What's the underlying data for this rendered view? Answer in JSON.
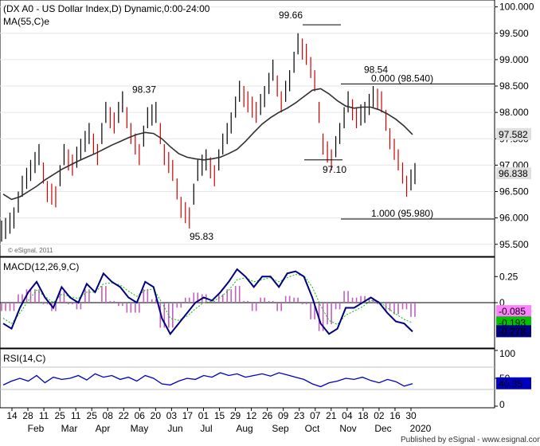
{
  "chart_data": [
    {
      "type": "candlestick",
      "title": "(DX A0 - US Dollar Index,D) Dynamic,0:00-24:00",
      "indicator_label": "MA(55,C)e",
      "watermark": "© eSignal, 2011",
      "ylim": [
        95.3,
        100.1
      ],
      "y_ticks": [
        "100.000",
        "99.500",
        "99.000",
        "98.500",
        "98.000",
        "97.500",
        "97.000",
        "96.500",
        "96.000",
        "95.500"
      ],
      "annotations": {
        "high_label": "99.66",
        "high_value": 99.66,
        "low_label": "95.83",
        "low_value": 95.83,
        "peak_label": "98.37",
        "peak_value": 98.37,
        "swing_high_label": "98.54",
        "swing_high_value": 98.54,
        "swing_low_label": "97.10",
        "swing_low_value": 97.1,
        "fib0_label": "0.000 (98.540)",
        "fib0_value": 98.54,
        "fib1_label": "1.000 (95.980)",
        "fib1_value": 95.98
      },
      "last_ma_label": "97.582",
      "last_ma_value": 97.582,
      "last_price_label": "96.838",
      "last_price_value": 96.838,
      "ma_points": [
        96.45,
        96.35,
        96.4,
        96.5,
        96.6,
        96.72,
        96.82,
        96.92,
        97.0,
        97.08,
        97.15,
        97.22,
        97.3,
        97.38,
        97.45,
        97.52,
        97.58,
        97.62,
        97.6,
        97.5,
        97.35,
        97.22,
        97.15,
        97.12,
        97.1,
        97.12,
        97.15,
        97.22,
        97.3,
        97.45,
        97.62,
        97.78,
        97.9,
        98.0,
        98.08,
        98.18,
        98.3,
        98.42,
        98.45,
        98.35,
        98.22,
        98.12,
        98.08,
        98.1,
        98.1,
        98.05,
        97.97,
        97.87,
        97.74,
        97.58
      ],
      "price_points": [
        95.8,
        96.0,
        96.6,
        96.9,
        97.2,
        96.5,
        96.4,
        97.2,
        97.0,
        97.3,
        97.6,
        97.2,
        98.0,
        97.8,
        98.2,
        97.6,
        97.2,
        97.9,
        98.0,
        97.2,
        96.9,
        96.2,
        96.0,
        96.9,
        97.1,
        96.8,
        97.4,
        97.8,
        98.4,
        98.2,
        98.0,
        98.3,
        98.8,
        98.2,
        98.6,
        99.3,
        99.1,
        98.6,
        97.4,
        97.1,
        97.6,
        98.2,
        97.9,
        98.0,
        98.3,
        98.2,
        97.5,
        97.1,
        96.6,
        96.84
      ]
    },
    {
      "type": "line",
      "title": "MACD(12,26,9,C)",
      "ylim": [
        -0.42,
        0.42
      ],
      "y_ticks": [
        "0.25",
        "0"
      ],
      "values_labels": {
        "hist": "-0.085",
        "signal": "-0.193",
        "macd": "-0.278"
      },
      "values": {
        "hist": -0.085,
        "signal": -0.193,
        "macd": -0.278
      },
      "colors": {
        "hist": "#ff80ff",
        "signal": "#00c000",
        "macd": "#000080"
      },
      "macd_points": [
        -0.2,
        -0.25,
        -0.05,
        0.1,
        0.2,
        0.05,
        -0.05,
        0.15,
        0.05,
        0.0,
        0.18,
        0.1,
        0.28,
        0.2,
        0.15,
        0.05,
        0.0,
        0.2,
        0.15,
        -0.15,
        -0.3,
        -0.2,
        -0.1,
        0.0,
        0.05,
        0.02,
        0.1,
        0.2,
        0.32,
        0.25,
        0.15,
        0.25,
        0.25,
        0.15,
        0.28,
        0.3,
        0.25,
        0.05,
        -0.2,
        -0.3,
        -0.25,
        -0.05,
        -0.05,
        0.0,
        0.05,
        0.0,
        -0.1,
        -0.18,
        -0.2,
        -0.278
      ],
      "signal_points": [
        -0.15,
        -0.2,
        -0.1,
        0.02,
        0.12,
        0.06,
        0.0,
        0.08,
        0.06,
        0.04,
        0.1,
        0.1,
        0.18,
        0.19,
        0.17,
        0.11,
        0.06,
        0.12,
        0.13,
        0.0,
        -0.15,
        -0.17,
        -0.13,
        -0.06,
        0.0,
        0.01,
        0.05,
        0.12,
        0.22,
        0.24,
        0.2,
        0.22,
        0.24,
        0.2,
        0.24,
        0.27,
        0.26,
        0.15,
        -0.03,
        -0.17,
        -0.21,
        -0.12,
        -0.08,
        -0.04,
        0.02,
        0.01,
        -0.05,
        -0.11,
        -0.16,
        -0.193
      ]
    },
    {
      "type": "line",
      "title": "RSI(14,C)",
      "ylim": [
        0,
        100
      ],
      "y_ticks": [
        "100",
        "50",
        "0"
      ],
      "value_label": "40.35",
      "value": 40.35,
      "levels": [
        70,
        30
      ],
      "rsi_points": [
        38,
        45,
        50,
        45,
        55,
        42,
        52,
        48,
        50,
        55,
        47,
        58,
        52,
        55,
        48,
        52,
        45,
        55,
        50,
        40,
        38,
        45,
        50,
        48,
        55,
        52,
        60,
        55,
        58,
        52,
        55,
        58,
        54,
        60,
        56,
        52,
        48,
        40,
        35,
        42,
        45,
        50,
        48,
        52,
        46,
        42,
        48,
        44,
        36,
        40.35
      ]
    }
  ],
  "x_axis": {
    "day_ticks": [
      "14",
      "28",
      "11",
      "25",
      "11",
      "25",
      "08",
      "22",
      "06",
      "20",
      "03",
      "17",
      "01",
      "15",
      "29",
      "12",
      "26",
      "09",
      "23",
      "07",
      "21",
      "04",
      "18",
      "02",
      "16",
      "30"
    ],
    "month_ticks": [
      "Feb",
      "Mar",
      "Apr",
      "May",
      "Jun",
      "Jul",
      "Aug",
      "Sep",
      "Oct",
      "Nov",
      "Dec",
      "2020"
    ]
  },
  "footer": "Published by eSignal - www.esignal.com"
}
